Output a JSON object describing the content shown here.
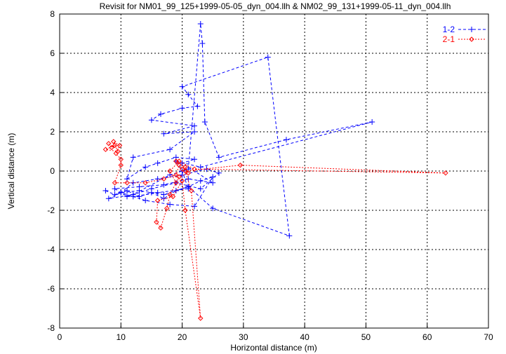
{
  "chart_data": {
    "type": "line",
    "title": "Revisit for NM01_99_125+1999-05-05_dyn_004.llh & NM02_99_131+1999-05-11_dyn_004.llh",
    "xlabel": "Horizontal distance (m)",
    "ylabel": "Vertical distance (m)",
    "xlim": [
      0,
      70
    ],
    "ylim": [
      -8,
      8
    ],
    "xticks": [
      "0",
      "10",
      "20",
      "30",
      "40",
      "50",
      "60",
      "70"
    ],
    "yticks": [
      "-8",
      "-6",
      "-4",
      "-2",
      "0",
      "2",
      "4",
      "6",
      "8"
    ],
    "grid": true,
    "legend_position": "top-right",
    "series": [
      {
        "name": "1-2",
        "color": "#0000ff",
        "marker": "plus",
        "points": [
          [
            7.5,
            -1.0
          ],
          [
            9,
            -1.2
          ],
          [
            11,
            -1.0
          ],
          [
            13,
            -1.3
          ],
          [
            15,
            -1.1
          ],
          [
            17,
            -1.4
          ],
          [
            19,
            -1.0
          ],
          [
            21,
            -0.8
          ],
          [
            23,
            -0.5
          ],
          [
            25,
            -0.3
          ],
          [
            22,
            -1.8
          ],
          [
            18,
            -1.7
          ],
          [
            14,
            -1.5
          ],
          [
            10,
            -1.1
          ],
          [
            12,
            -0.6
          ],
          [
            16,
            -0.4
          ],
          [
            20,
            -0.2
          ],
          [
            24,
            0.1
          ],
          [
            26,
            -0.1
          ],
          [
            23,
            -0.9
          ],
          [
            19,
            -0.6
          ],
          [
            15,
            -0.9
          ],
          [
            11,
            -1.3
          ],
          [
            9,
            -0.9
          ],
          [
            13,
            -0.8
          ],
          [
            17,
            -0.7
          ],
          [
            21,
            -0.4
          ],
          [
            25,
            -0.6
          ],
          [
            20,
            0.4
          ],
          [
            22,
            0.6
          ],
          [
            19,
            0.7
          ],
          [
            16,
            0.4
          ],
          [
            14,
            0.2
          ],
          [
            11,
            -0.4
          ],
          [
            12,
            0.7
          ],
          [
            18,
            1.1
          ],
          [
            22,
            2.0
          ],
          [
            17,
            1.9
          ],
          [
            22,
            2.3
          ],
          [
            15,
            2.6
          ],
          [
            16.5,
            2.9
          ],
          [
            20,
            3.2
          ],
          [
            22.5,
            3.3
          ],
          [
            21,
            3.9
          ],
          [
            20,
            4.3
          ],
          [
            34,
            5.8
          ],
          [
            37.5,
            -3.3
          ],
          [
            25,
            -1.9
          ],
          [
            21,
            -0.8
          ],
          [
            17,
            -1.2
          ],
          [
            13,
            -1.0
          ],
          [
            10,
            -1.1
          ],
          [
            8,
            -1.4
          ],
          [
            12,
            -1.2
          ],
          [
            18,
            -0.2
          ],
          [
            21,
            0.1
          ],
          [
            23,
            7.5
          ],
          [
            23.3,
            6.5
          ],
          [
            23.7,
            2.5
          ],
          [
            26,
            0.7
          ],
          [
            37,
            1.6
          ],
          [
            51,
            2.5
          ],
          [
            23,
            0.2
          ],
          [
            19,
            0.5
          ],
          [
            20,
            0.0
          ],
          [
            21,
            -0.9
          ],
          [
            16,
            -1.1
          ],
          [
            12,
            -1.3
          ]
        ]
      },
      {
        "name": "2-1",
        "color": "#ff0000",
        "marker": "diamond",
        "points": [
          [
            8,
            1.4
          ],
          [
            8.5,
            1.2
          ],
          [
            9,
            1.3
          ],
          [
            7.5,
            1.1
          ],
          [
            9.5,
            1.0
          ],
          [
            8.8,
            1.5
          ],
          [
            9.8,
            1.3
          ],
          [
            9.2,
            0.9
          ],
          [
            10,
            0.6
          ],
          [
            10,
            0.3
          ],
          [
            9,
            -0.6
          ],
          [
            11,
            -0.6
          ],
          [
            14,
            -0.6
          ],
          [
            17,
            -0.4
          ],
          [
            19,
            -0.2
          ],
          [
            19.5,
            0.3
          ],
          [
            20,
            0.1
          ],
          [
            19,
            0.5
          ],
          [
            20.5,
            0.2
          ],
          [
            21,
            -0.1
          ],
          [
            19.5,
            -0.3
          ],
          [
            18,
            -1.2
          ],
          [
            17.5,
            -1.9
          ],
          [
            16.5,
            -2.9
          ],
          [
            15.8,
            -2.6
          ],
          [
            16,
            -1.5
          ],
          [
            18.5,
            -1.3
          ],
          [
            20,
            -0.5
          ],
          [
            20.5,
            -2.0
          ],
          [
            23,
            -7.5
          ],
          [
            21.5,
            -1.0
          ],
          [
            20.5,
            0.0
          ],
          [
            29.5,
            0.3
          ],
          [
            63,
            -0.1
          ],
          [
            22,
            0.1
          ],
          [
            19.5,
            0.5
          ],
          [
            18,
            0.0
          ],
          [
            19,
            -0.6
          ]
        ]
      }
    ]
  }
}
